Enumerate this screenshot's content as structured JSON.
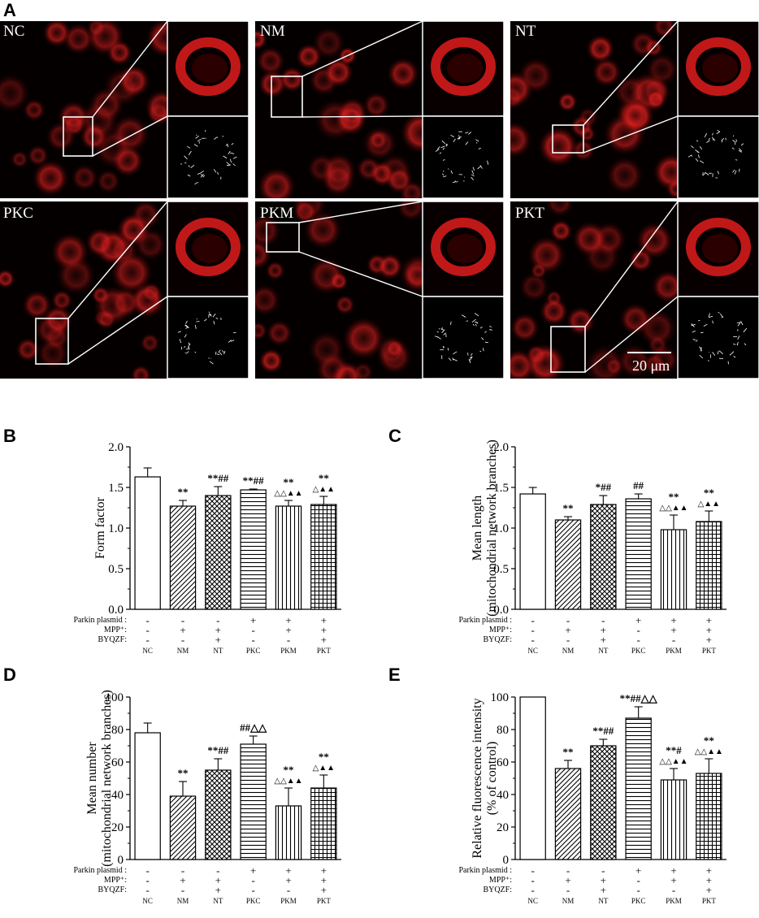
{
  "figure": {
    "panel_letters": [
      "A",
      "B",
      "C",
      "D",
      "E"
    ],
    "micrographs": [
      {
        "label": "NC"
      },
      {
        "label": "NM"
      },
      {
        "label": "NT"
      },
      {
        "label": "PKC"
      },
      {
        "label": "PKM"
      },
      {
        "label": "PKT"
      }
    ],
    "scale_bar_label": "20 μm"
  },
  "condition_table": {
    "row_labels": [
      "Parkin plasmid :",
      "MPP⁺:",
      "BYQZF:"
    ],
    "rows": [
      [
        "-",
        "-",
        "-",
        "+",
        "+",
        "+"
      ],
      [
        "-",
        "+",
        "+",
        "-",
        "+",
        "+"
      ],
      [
        "-",
        "-",
        "+",
        "-",
        "-",
        "+"
      ]
    ]
  },
  "chart_data": [
    {
      "type": "bar",
      "panel": "B",
      "categories": [
        "NC",
        "NM",
        "NT",
        "PKC",
        "PKM",
        "PKT"
      ],
      "values": [
        1.63,
        1.27,
        1.4,
        1.47,
        1.27,
        1.29
      ],
      "errors": [
        0.11,
        0.07,
        0.11,
        0.01,
        0.07,
        0.1
      ],
      "significance": [
        "",
        "**",
        "**##",
        "**##",
        "**",
        "**"
      ],
      "significance_line2": [
        "",
        "",
        "",
        "",
        "△△▲▲",
        "△▲▲"
      ],
      "ylabel": "Form  factor",
      "ylim": [
        0,
        2.0
      ],
      "yticks": [
        "0.0",
        "0.5",
        "1.0",
        "1.5",
        "2.0"
      ],
      "patterns": [
        "white",
        "diag",
        "cross",
        "hstripe",
        "vstripe",
        "grid"
      ]
    },
    {
      "type": "bar",
      "panel": "C",
      "categories": [
        "NC",
        "NM",
        "NT",
        "PKC",
        "PKM",
        "PKT"
      ],
      "values": [
        1.42,
        1.1,
        1.29,
        1.36,
        0.98,
        1.08
      ],
      "errors": [
        0.08,
        0.04,
        0.11,
        0.06,
        0.18,
        0.13
      ],
      "significance": [
        "",
        "**",
        "*##",
        "##",
        "**",
        "**"
      ],
      "significance_line2": [
        "",
        "",
        "",
        "",
        "△△▲▲",
        "△▲▲"
      ],
      "ylabel": "Mean length",
      "ylabel2": "(mitochondrial network branches)",
      "ylim": [
        0,
        2.0
      ],
      "yticks": [
        "0.0",
        "0.5",
        "1.0",
        "1.5",
        "2.0"
      ],
      "patterns": [
        "white",
        "diag",
        "cross",
        "hstripe",
        "vstripe",
        "grid"
      ]
    },
    {
      "type": "bar",
      "panel": "D",
      "categories": [
        "NC",
        "NM",
        "NT",
        "PKC",
        "PKM",
        "PKT"
      ],
      "values": [
        78,
        39,
        55,
        71,
        33,
        44
      ],
      "errors": [
        6,
        9,
        7,
        5,
        11,
        8
      ],
      "significance": [
        "",
        "**",
        "**##",
        "##△△",
        "**",
        "**"
      ],
      "significance_line2": [
        "",
        "",
        "",
        "",
        "△△▲▲",
        "△▲▲"
      ],
      "ylabel": "Mean number",
      "ylabel2": "(mitochondrial network branches)",
      "ylim": [
        0,
        100
      ],
      "yticks": [
        "0",
        "20",
        "40",
        "60",
        "80",
        "100"
      ],
      "patterns": [
        "white",
        "diag",
        "cross",
        "hstripe",
        "vstripe",
        "grid"
      ]
    },
    {
      "type": "bar",
      "panel": "E",
      "categories": [
        "NC",
        "NM",
        "NT",
        "PKC",
        "PKM",
        "PKT"
      ],
      "values": [
        100,
        56,
        70,
        87,
        49,
        53
      ],
      "errors": [
        0,
        5,
        4,
        7,
        7,
        9
      ],
      "significance": [
        "",
        "**",
        "**##",
        "**##△△",
        "**#",
        "**"
      ],
      "significance_line2": [
        "",
        "",
        "",
        "",
        "△△▲▲",
        "△△▲▲"
      ],
      "ylabel": "Relative fluorescence intensity",
      "ylabel2": "(% of control)",
      "ylim": [
        0,
        100
      ],
      "yticks": [
        "0",
        "20",
        "40",
        "60",
        "80",
        "100"
      ],
      "patterns": [
        "white",
        "diag",
        "cross",
        "hstripe",
        "vstripe",
        "grid"
      ]
    }
  ]
}
